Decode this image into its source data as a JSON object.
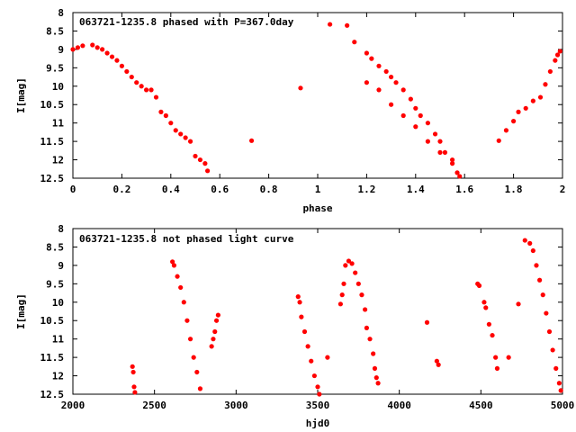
{
  "chart_data": [
    {
      "type": "scatter",
      "title": "063721-1235.8 phased with P=367.0day",
      "xlabel": "phase",
      "ylabel": "I[mag]",
      "xlim": [
        0,
        2
      ],
      "ylim": [
        12.5,
        8
      ],
      "y_inverted": true,
      "grid": false,
      "x_ticks": [
        "0",
        "0.2",
        "0.4",
        "0.6",
        "0.8",
        "1",
        "1.2",
        "1.4",
        "1.6",
        "1.8",
        "2"
      ],
      "y_ticks": [
        "8",
        "8.5",
        "9",
        "9.5",
        "10",
        "10.5",
        "11",
        "11.5",
        "12",
        "12.5"
      ],
      "marker_color": "#ff0000",
      "series": [
        {
          "points": [
            [
              0.0,
              9.0
            ],
            [
              0.02,
              8.95
            ],
            [
              0.04,
              8.9
            ],
            [
              0.08,
              8.88
            ],
            [
              0.1,
              8.95
            ],
            [
              0.12,
              9.0
            ],
            [
              0.14,
              9.1
            ],
            [
              0.16,
              9.2
            ],
            [
              0.18,
              9.3
            ],
            [
              0.2,
              9.45
            ],
            [
              0.22,
              9.6
            ],
            [
              0.24,
              9.75
            ],
            [
              0.26,
              9.9
            ],
            [
              0.28,
              10.0
            ],
            [
              0.3,
              10.1
            ],
            [
              0.32,
              10.1
            ],
            [
              0.34,
              10.3
            ],
            [
              0.36,
              10.7
            ],
            [
              0.38,
              10.8
            ],
            [
              0.4,
              11.0
            ],
            [
              0.42,
              11.2
            ],
            [
              0.44,
              11.3
            ],
            [
              0.46,
              11.4
            ],
            [
              0.48,
              11.5
            ],
            [
              0.5,
              11.9
            ],
            [
              0.52,
              12.0
            ],
            [
              0.54,
              12.1
            ],
            [
              0.55,
              12.3
            ],
            [
              0.73,
              11.48
            ],
            [
              0.93,
              10.05
            ],
            [
              1.05,
              8.32
            ],
            [
              1.12,
              8.35
            ],
            [
              1.15,
              8.8
            ],
            [
              1.2,
              9.1
            ],
            [
              1.22,
              9.25
            ],
            [
              1.25,
              9.45
            ],
            [
              1.28,
              9.6
            ],
            [
              1.3,
              9.75
            ],
            [
              1.32,
              9.9
            ],
            [
              1.35,
              10.1
            ],
            [
              1.38,
              10.35
            ],
            [
              1.4,
              10.6
            ],
            [
              1.42,
              10.8
            ],
            [
              1.45,
              11.0
            ],
            [
              1.48,
              11.3
            ],
            [
              1.5,
              11.5
            ],
            [
              1.52,
              11.8
            ],
            [
              1.55,
              12.0
            ],
            [
              1.57,
              12.35
            ],
            [
              1.58,
              12.45
            ],
            [
              1.2,
              9.9
            ],
            [
              1.25,
              10.1
            ],
            [
              1.3,
              10.5
            ],
            [
              1.35,
              10.8
            ],
            [
              1.4,
              11.1
            ],
            [
              1.45,
              11.5
            ],
            [
              1.5,
              11.8
            ],
            [
              1.55,
              12.1
            ],
            [
              1.74,
              11.48
            ],
            [
              1.77,
              11.2
            ],
            [
              1.8,
              10.95
            ],
            [
              1.82,
              10.7
            ],
            [
              1.85,
              10.6
            ],
            [
              1.88,
              10.4
            ],
            [
              1.91,
              10.3
            ],
            [
              1.93,
              9.95
            ],
            [
              1.95,
              9.6
            ],
            [
              1.97,
              9.3
            ],
            [
              1.98,
              9.15
            ],
            [
              1.99,
              9.05
            ]
          ]
        }
      ]
    },
    {
      "type": "scatter",
      "title": "063721-1235.8 not phased light curve",
      "xlabel": "hjd0",
      "ylabel": "I[mag]",
      "xlim": [
        2000,
        5000
      ],
      "ylim": [
        12.5,
        8
      ],
      "y_inverted": true,
      "grid": false,
      "x_ticks": [
        "2000",
        "2500",
        "3000",
        "3500",
        "4000",
        "4500",
        "5000"
      ],
      "y_ticks": [
        "8",
        "8.5",
        "9",
        "9.5",
        "10",
        "10.5",
        "11",
        "11.5",
        "12",
        "12.5"
      ],
      "marker_color": "#ff0000",
      "series": [
        {
          "points": [
            [
              2365,
              11.75
            ],
            [
              2370,
              11.9
            ],
            [
              2375,
              12.3
            ],
            [
              2380,
              12.45
            ],
            [
              2610,
              8.9
            ],
            [
              2620,
              9.0
            ],
            [
              2640,
              9.3
            ],
            [
              2660,
              9.6
            ],
            [
              2680,
              10.0
            ],
            [
              2700,
              10.5
            ],
            [
              2720,
              11.0
            ],
            [
              2740,
              11.5
            ],
            [
              2760,
              11.9
            ],
            [
              2780,
              12.35
            ],
            [
              2850,
              11.2
            ],
            [
              2860,
              11.0
            ],
            [
              2870,
              10.8
            ],
            [
              2880,
              10.5
            ],
            [
              2890,
              10.35
            ],
            [
              3380,
              9.85
            ],
            [
              3390,
              10.0
            ],
            [
              3400,
              10.4
            ],
            [
              3420,
              10.8
            ],
            [
              3440,
              11.2
            ],
            [
              3460,
              11.6
            ],
            [
              3480,
              12.0
            ],
            [
              3500,
              12.3
            ],
            [
              3510,
              12.5
            ],
            [
              3560,
              11.5
            ],
            [
              3640,
              10.05
            ],
            [
              3650,
              9.8
            ],
            [
              3660,
              9.5
            ],
            [
              3670,
              9.0
            ],
            [
              3690,
              8.88
            ],
            [
              3710,
              8.95
            ],
            [
              3730,
              9.2
            ],
            [
              3750,
              9.5
            ],
            [
              3770,
              9.8
            ],
            [
              3790,
              10.2
            ],
            [
              3800,
              10.7
            ],
            [
              3820,
              11.0
            ],
            [
              3840,
              11.4
            ],
            [
              3850,
              11.8
            ],
            [
              3860,
              12.05
            ],
            [
              3870,
              12.2
            ],
            [
              4170,
              10.55
            ],
            [
              4230,
              11.6
            ],
            [
              4240,
              11.7
            ],
            [
              4480,
              9.5
            ],
            [
              4490,
              9.55
            ],
            [
              4520,
              10.0
            ],
            [
              4530,
              10.15
            ],
            [
              4550,
              10.6
            ],
            [
              4570,
              10.9
            ],
            [
              4590,
              11.5
            ],
            [
              4600,
              11.8
            ],
            [
              4670,
              11.5
            ],
            [
              4730,
              10.05
            ],
            [
              4770,
              8.32
            ],
            [
              4800,
              8.4
            ],
            [
              4820,
              8.6
            ],
            [
              4840,
              9.0
            ],
            [
              4860,
              9.4
            ],
            [
              4880,
              9.8
            ],
            [
              4900,
              10.3
            ],
            [
              4920,
              10.8
            ],
            [
              4940,
              11.3
            ],
            [
              4960,
              11.8
            ],
            [
              4980,
              12.2
            ],
            [
              4990,
              12.4
            ]
          ]
        }
      ]
    }
  ]
}
